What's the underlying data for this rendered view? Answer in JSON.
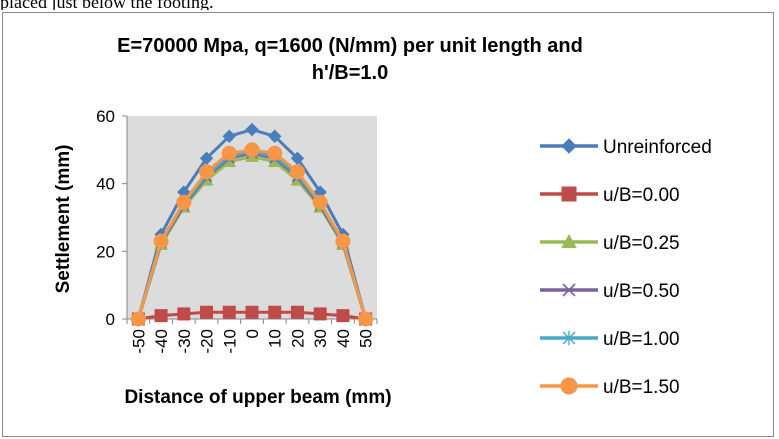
{
  "page": {
    "top_fragment": "placed just below the footing."
  },
  "chart_data": {
    "type": "line",
    "title_line1": "E=70000 Mpa, q=1600 (N/mm) per unit length and",
    "title_line2": "h'/B=1.0",
    "xlabel": "Distance of upper beam (mm)",
    "ylabel": "Settlement (mm)",
    "categories": [
      "-50",
      "-40",
      "-30",
      "-20",
      "-10",
      "0",
      "10",
      "20",
      "30",
      "40",
      "50"
    ],
    "ylim": [
      0,
      60
    ],
    "yticks": [
      0,
      20,
      40,
      60
    ],
    "grid": false,
    "plot_background": "#dcdcdc",
    "legend_position": "right",
    "series": [
      {
        "name": "Unreinforced",
        "color": "#4a7ebb",
        "marker": "diamond",
        "values": [
          0,
          25,
          37.5,
          47.5,
          54,
          56,
          54,
          47.5,
          37.5,
          25,
          0
        ]
      },
      {
        "name": "u/B=0.00",
        "color": "#be4b48",
        "marker": "square",
        "values": [
          0,
          1,
          1.5,
          2,
          2,
          2,
          2,
          2,
          1.5,
          1,
          0
        ]
      },
      {
        "name": "u/B=0.25",
        "color": "#98b954",
        "marker": "triangle",
        "values": [
          0,
          22,
          33,
          41,
          46.5,
          48,
          46.5,
          41,
          33,
          22,
          0
        ]
      },
      {
        "name": "u/B=0.50",
        "color": "#7d60a0",
        "marker": "x",
        "values": [
          0,
          22.5,
          33.5,
          42,
          47.5,
          49,
          47.5,
          42,
          33.5,
          22.5,
          0
        ]
      },
      {
        "name": "u/B=1.00",
        "color": "#46aac5",
        "marker": "asterisk",
        "values": [
          0,
          22.8,
          34,
          42.5,
          48,
          49.5,
          48,
          42.5,
          34,
          22.8,
          0
        ]
      },
      {
        "name": "u/B=1.50",
        "color": "#f79646",
        "marker": "circle",
        "values": [
          0,
          23,
          34.5,
          43.5,
          49,
          50,
          49,
          43.5,
          34.5,
          23,
          0
        ]
      }
    ]
  }
}
